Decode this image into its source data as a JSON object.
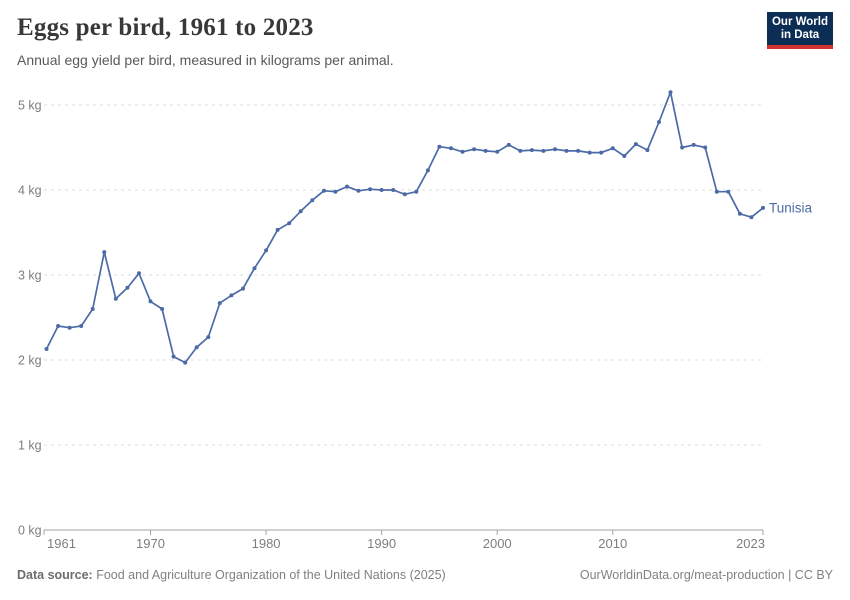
{
  "header": {
    "title": "Eggs per bird, 1961 to 2023",
    "subtitle": "Annual egg yield per bird, measured in kilograms per animal.",
    "logo": {
      "line1": "Our World",
      "line2": "in Data"
    }
  },
  "chart_data": {
    "type": "line",
    "title": "Eggs per bird, 1961 to 2023",
    "xlabel": "",
    "ylabel": "kilograms per animal",
    "xlim": [
      1961,
      2023
    ],
    "ylim": [
      0,
      5.3
    ],
    "grid": "horizontal-dashed",
    "x_tick_years": [
      1970,
      1980,
      1990,
      2000,
      2010
    ],
    "x_tick_first": 1961,
    "x_tick_last": 2023,
    "y_tick_labels": [
      "0 kg",
      "1 kg",
      "2 kg",
      "3 kg",
      "4 kg",
      "5 kg"
    ],
    "y_tick_values": [
      0,
      1,
      2,
      3,
      4,
      5
    ],
    "series": [
      {
        "name": "Tunisia",
        "color": "#4C6BA6",
        "x": [
          1961,
          1962,
          1963,
          1964,
          1965,
          1966,
          1967,
          1968,
          1969,
          1970,
          1971,
          1972,
          1973,
          1974,
          1975,
          1976,
          1977,
          1978,
          1979,
          1980,
          1981,
          1982,
          1983,
          1984,
          1985,
          1986,
          1987,
          1988,
          1989,
          1990,
          1991,
          1992,
          1993,
          1994,
          1995,
          1996,
          1997,
          1998,
          1999,
          2000,
          2001,
          2002,
          2003,
          2004,
          2005,
          2006,
          2007,
          2008,
          2009,
          2010,
          2011,
          2012,
          2013,
          2014,
          2015,
          2016,
          2017,
          2018,
          2019,
          2020,
          2021,
          2022,
          2023
        ],
        "values": [
          2.13,
          2.4,
          2.38,
          2.4,
          2.6,
          3.27,
          2.72,
          2.85,
          3.02,
          2.69,
          2.6,
          2.04,
          1.97,
          2.15,
          2.27,
          2.67,
          2.76,
          2.84,
          3.08,
          3.29,
          3.53,
          3.61,
          3.75,
          3.88,
          3.99,
          3.98,
          4.04,
          3.99,
          4.01,
          4.0,
          4.0,
          3.95,
          3.98,
          4.23,
          4.51,
          4.49,
          4.45,
          4.48,
          4.46,
          4.45,
          4.53,
          4.46,
          4.47,
          4.46,
          4.48,
          4.46,
          4.46,
          4.44,
          4.44,
          4.49,
          4.4,
          4.54,
          4.47,
          4.8,
          5.15,
          4.5,
          4.53,
          4.5,
          3.98,
          3.98,
          3.72,
          3.68,
          3.79
        ]
      }
    ],
    "legend_position": "end-of-line-label"
  },
  "colors": {
    "line": "#4C6BA6",
    "grid": "#dedede",
    "axis": "#a3a3a3",
    "tick_text": "#7e7e7e",
    "logo_bg": "#0c2d54",
    "logo_stripe": "#d0342c"
  },
  "footer": {
    "source_label": "Data source:",
    "source_text": " Food and Agriculture Organization of the United Nations (2025)",
    "credit": "OurWorldinData.org/meat-production | CC BY"
  }
}
